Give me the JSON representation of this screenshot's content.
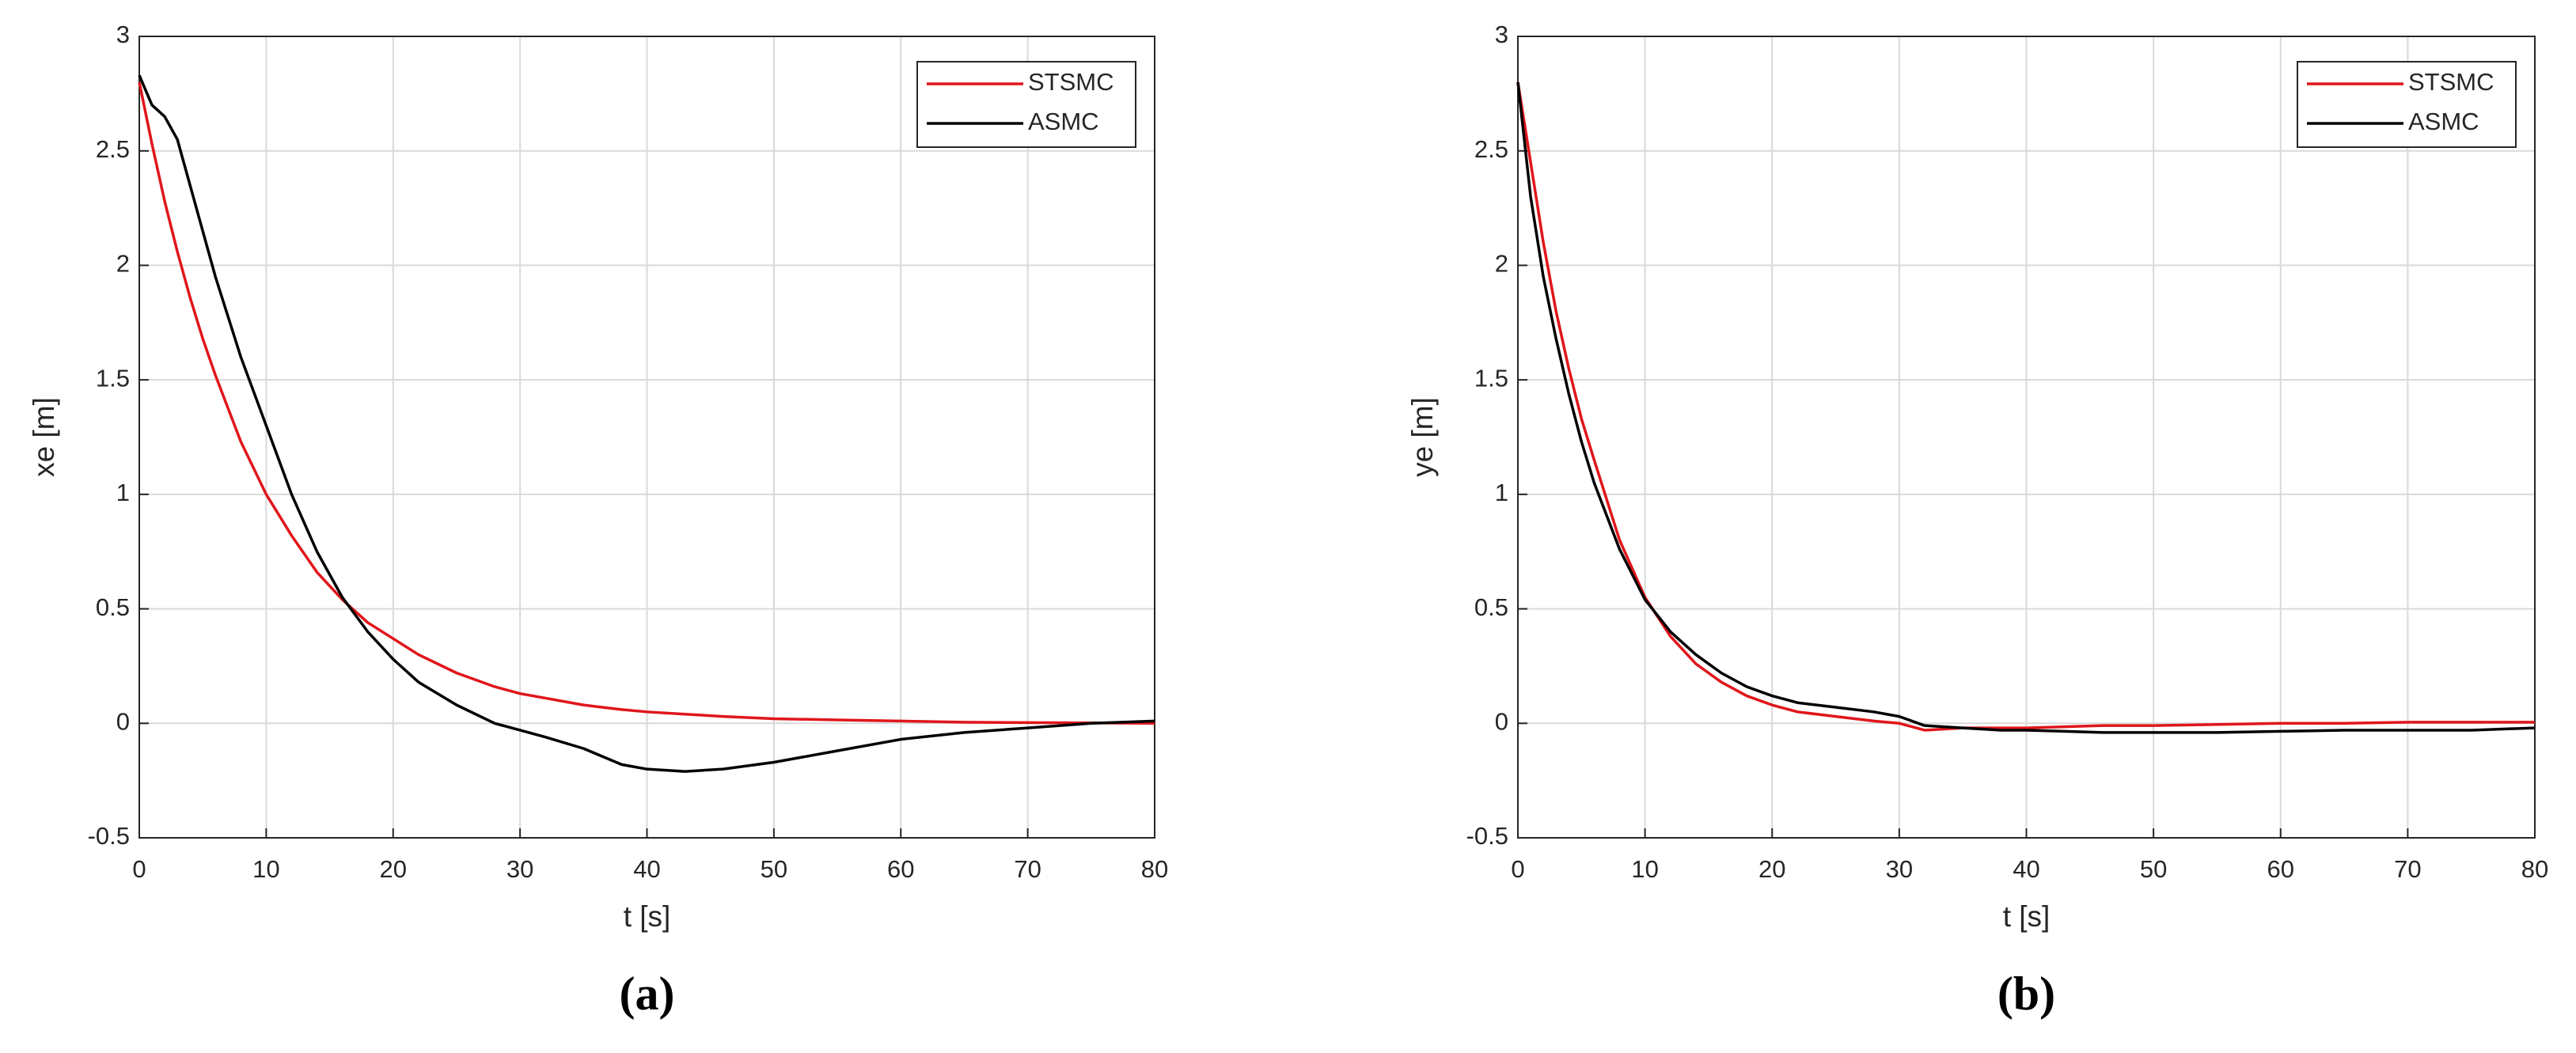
{
  "chart_data": [
    {
      "type": "line",
      "caption": "(a)",
      "xlabel": "t [s]",
      "ylabel": "xe [m]",
      "x": [
        0,
        1,
        2,
        3,
        4,
        5,
        6,
        8,
        10,
        12,
        14,
        16,
        18,
        20,
        22,
        25,
        28,
        30,
        32,
        35,
        38,
        40,
        43,
        46,
        50,
        55,
        60,
        65,
        70,
        75,
        80
      ],
      "series": [
        {
          "name": "STSMC",
          "color": "#e0161b",
          "values": [
            2.8,
            2.53,
            2.28,
            2.06,
            1.86,
            1.68,
            1.52,
            1.23,
            1.0,
            0.82,
            0.66,
            0.54,
            0.44,
            0.37,
            0.3,
            0.22,
            0.16,
            0.13,
            0.11,
            0.08,
            0.06,
            0.05,
            0.04,
            0.03,
            0.02,
            0.015,
            0.01,
            0.005,
            0.003,
            0.002,
            0
          ]
        },
        {
          "name": "ASMC",
          "color": "#000000",
          "values": [
            2.83,
            2.7,
            2.65,
            2.55,
            2.35,
            2.15,
            1.95,
            1.6,
            1.3,
            1.0,
            0.75,
            0.55,
            0.4,
            0.28,
            0.18,
            0.08,
            0.0,
            -0.03,
            -0.06,
            -0.11,
            -0.18,
            -0.2,
            -0.21,
            -0.2,
            -0.17,
            -0.12,
            -0.07,
            -0.04,
            -0.02,
            0,
            0.01
          ]
        }
      ],
      "xlim": [
        0,
        80
      ],
      "xticks": [
        0,
        10,
        20,
        30,
        40,
        50,
        60,
        70,
        80
      ],
      "ylim": [
        -0.5,
        3
      ],
      "yticks": [
        -0.5,
        0,
        0.5,
        1,
        1.5,
        2,
        2.5,
        3
      ],
      "grid": true,
      "legend": "upper-right"
    },
    {
      "type": "line",
      "caption": "(b)",
      "xlabel": "t [s]",
      "ylabel": "ye [m]",
      "x": [
        0,
        1,
        2,
        3,
        4,
        5,
        6,
        8,
        10,
        12,
        14,
        16,
        18,
        20,
        22,
        25,
        28,
        30,
        32,
        35,
        38,
        40,
        43,
        46,
        50,
        55,
        60,
        65,
        70,
        75,
        80
      ],
      "series": [
        {
          "name": "STSMC",
          "color": "#e0161b",
          "values": [
            2.8,
            2.45,
            2.1,
            1.8,
            1.55,
            1.33,
            1.15,
            0.8,
            0.55,
            0.38,
            0.26,
            0.18,
            0.12,
            0.08,
            0.05,
            0.03,
            0.01,
            0,
            -0.03,
            -0.02,
            -0.02,
            -0.02,
            -0.015,
            -0.01,
            -0.01,
            -0.005,
            0,
            0,
            0.005,
            0.005,
            0.005
          ]
        },
        {
          "name": "ASMC",
          "color": "#000000",
          "values": [
            2.8,
            2.3,
            1.95,
            1.68,
            1.44,
            1.23,
            1.05,
            0.76,
            0.54,
            0.4,
            0.3,
            0.22,
            0.16,
            0.12,
            0.09,
            0.07,
            0.05,
            0.03,
            -0.01,
            -0.02,
            -0.03,
            -0.03,
            -0.035,
            -0.04,
            -0.04,
            -0.04,
            -0.035,
            -0.03,
            -0.03,
            -0.03,
            -0.02
          ]
        }
      ],
      "xlim": [
        0,
        80
      ],
      "xticks": [
        0,
        10,
        20,
        30,
        40,
        50,
        60,
        70,
        80
      ],
      "ylim": [
        -0.5,
        3
      ],
      "yticks": [
        -0.5,
        0,
        0.5,
        1,
        1.5,
        2,
        2.5,
        3
      ],
      "grid": true,
      "legend": "upper-right"
    }
  ]
}
